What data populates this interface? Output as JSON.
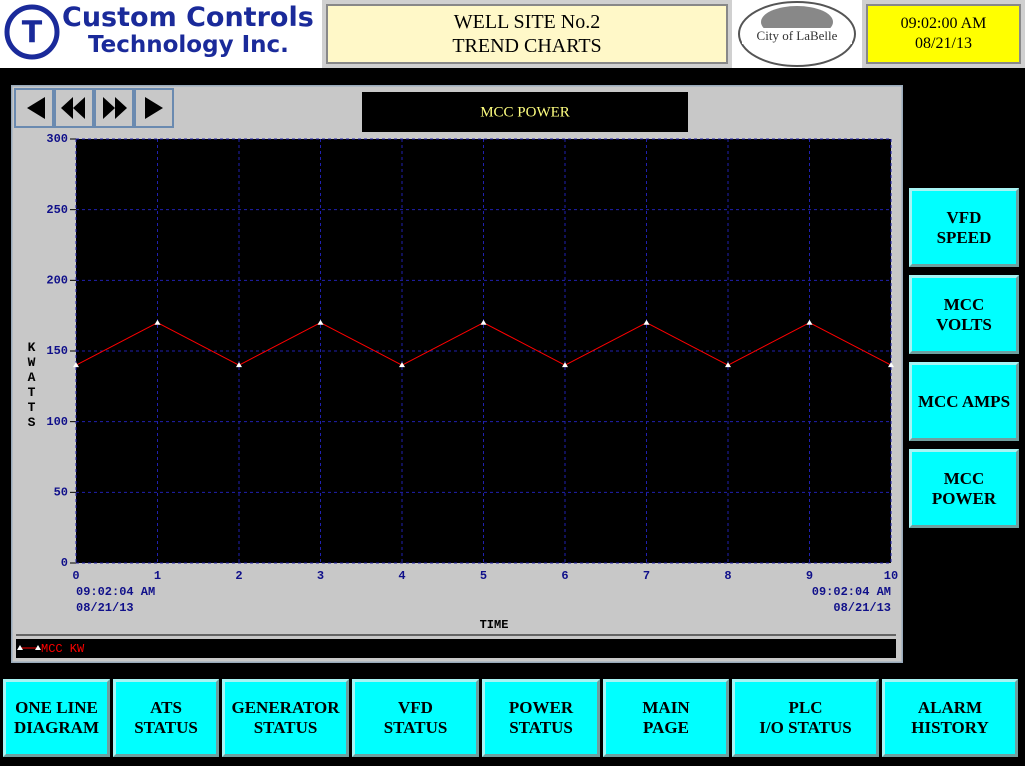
{
  "header": {
    "company": [
      "Custom Controls",
      "Technology Inc."
    ],
    "title": [
      "WELL SITE No.2",
      "TREND CHARTS"
    ],
    "city_logo": [
      "City of",
      "LaBelle"
    ],
    "clock": {
      "time": "09:02:00 AM",
      "date": "08/21/13"
    }
  },
  "chart_data": {
    "type": "line",
    "title": "MCC POWER",
    "x": [
      0,
      1,
      2,
      3,
      4,
      5,
      6,
      7,
      8,
      9,
      10
    ],
    "series": [
      {
        "name": "MCC KW",
        "color": "#ff0000",
        "values": [
          140,
          170,
          140,
          170,
          140,
          170,
          140,
          170,
          140,
          170,
          140
        ]
      }
    ],
    "xlim": [
      0,
      10
    ],
    "xticks": [
      0,
      1,
      2,
      3,
      4,
      5,
      6,
      7,
      8,
      9,
      10
    ],
    "ylim": [
      0,
      300
    ],
    "yticks": [
      0,
      50,
      100,
      150,
      200,
      250,
      300
    ],
    "ylabel": "KWATTS",
    "xlabel": "TIME",
    "x_start_label": [
      "09:02:04 AM",
      "08/21/13"
    ],
    "x_end_label": [
      "09:02:04 AM",
      "08/21/13"
    ],
    "grid": true
  },
  "side_buttons": [
    [
      "VFD",
      "SPEED"
    ],
    [
      "MCC",
      "VOLTS"
    ],
    [
      "MCC AMPS"
    ],
    [
      "MCC",
      "POWER"
    ]
  ],
  "bottom_buttons": [
    [
      "ONE LINE",
      "DIAGRAM"
    ],
    [
      "ATS",
      "STATUS"
    ],
    [
      "GENERATOR",
      "STATUS"
    ],
    [
      "VFD",
      "STATUS"
    ],
    [
      "POWER",
      "STATUS"
    ],
    [
      "MAIN",
      "PAGE"
    ],
    [
      "PLC",
      "I/O STATUS"
    ],
    [
      "ALARM",
      "HISTORY"
    ]
  ]
}
